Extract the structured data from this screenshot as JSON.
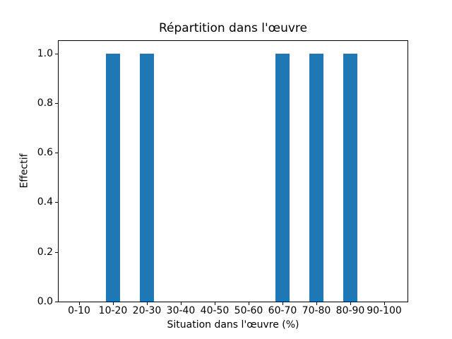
{
  "figure": {
    "background": "#ffffff"
  },
  "chart_data": {
    "type": "bar",
    "title": "Répartition dans l'œuvre",
    "xlabel": "Situation dans l'œuvre (%)",
    "ylabel": "Effectif",
    "categories": [
      "0-10",
      "10-20",
      "20-30",
      "30-40",
      "40-50",
      "50-60",
      "60-70",
      "70-80",
      "80-90",
      "90-100"
    ],
    "values": [
      0,
      1,
      1,
      0,
      0,
      0,
      1,
      1,
      1,
      0
    ],
    "ytick_labels": [
      "0.0",
      "0.2",
      "0.4",
      "0.6",
      "0.8",
      "1.0"
    ],
    "ytick_values": [
      0.0,
      0.2,
      0.4,
      0.6,
      0.8,
      1.0
    ],
    "ylim": [
      0,
      1.05
    ],
    "bar_color": "#1f77b4",
    "axis_color": "#000000",
    "grid": false,
    "legend_position": "none"
  }
}
